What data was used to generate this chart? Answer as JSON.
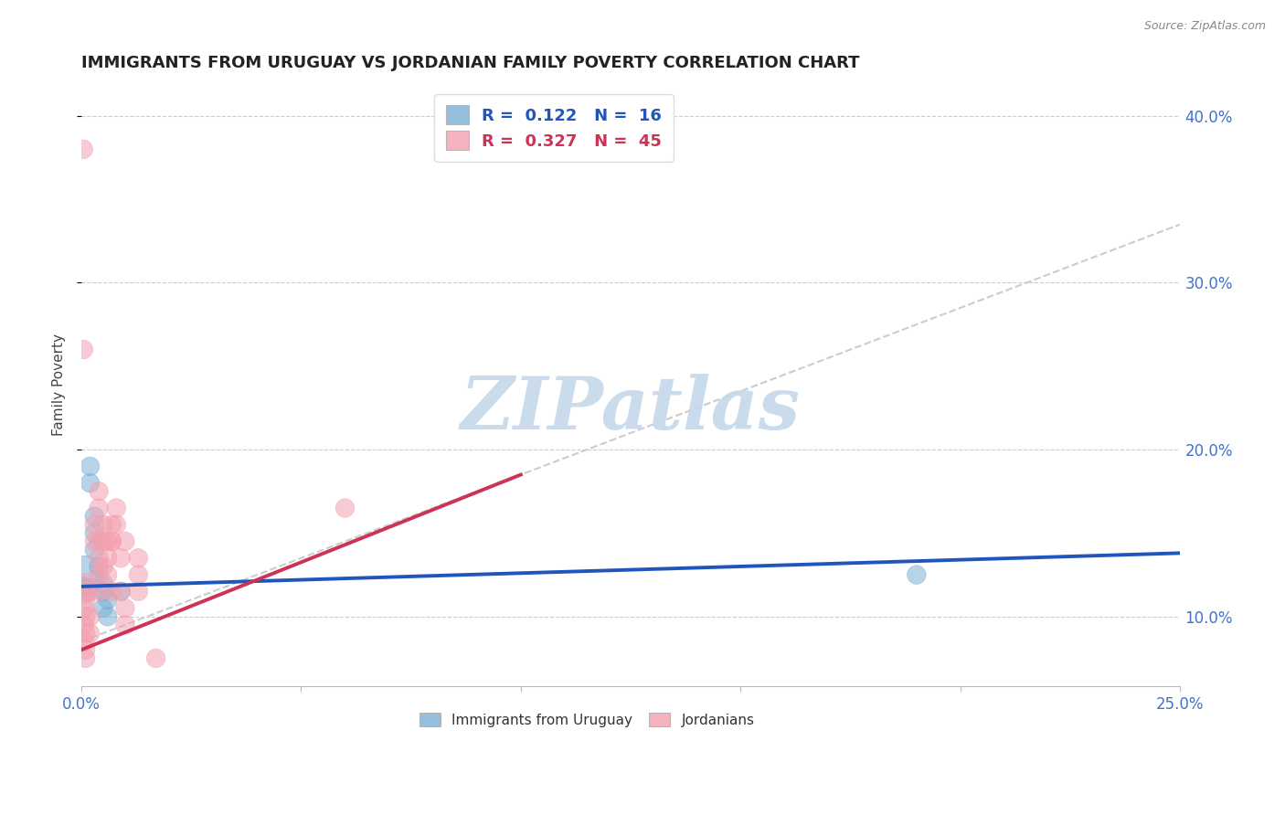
{
  "title": "IMMIGRANTS FROM URUGUAY VS JORDANIAN FAMILY POVERTY CORRELATION CHART",
  "source": "Source: ZipAtlas.com",
  "ylabel": "Family Poverty",
  "xlim": [
    0.0,
    0.25
  ],
  "ylim": [
    0.058,
    0.42
  ],
  "yticks": [
    0.1,
    0.2,
    0.3,
    0.4
  ],
  "grid_color": "#cccccc",
  "watermark": "ZIPatlas",
  "watermark_color": "#c5d8ea",
  "uruguay_color": "#7bafd4",
  "jordan_color": "#f4a0b0",
  "uruguay_line_color": "#2255bb",
  "jordan_line_color": "#cc3355",
  "gray_line_color": "#cccccc",
  "uruguay_points": [
    [
      0.0008,
      0.125
    ],
    [
      0.0008,
      0.115
    ],
    [
      0.002,
      0.19
    ],
    [
      0.002,
      0.18
    ],
    [
      0.003,
      0.16
    ],
    [
      0.003,
      0.15
    ],
    [
      0.003,
      0.14
    ],
    [
      0.004,
      0.13
    ],
    [
      0.005,
      0.115
    ],
    [
      0.005,
      0.105
    ],
    [
      0.005,
      0.12
    ],
    [
      0.006,
      0.11
    ],
    [
      0.006,
      0.1
    ],
    [
      0.009,
      0.115
    ],
    [
      0.19,
      0.125
    ],
    [
      0.0005,
      0.118
    ]
  ],
  "uruguay_sizes": [
    900,
    350,
    220,
    220,
    220,
    220,
    220,
    220,
    220,
    220,
    220,
    220,
    220,
    220,
    220,
    220
  ],
  "jordan_points": [
    [
      0.0005,
      0.38
    ],
    [
      0.0005,
      0.26
    ],
    [
      0.0008,
      0.115
    ],
    [
      0.0008,
      0.105
    ],
    [
      0.0008,
      0.095
    ],
    [
      0.0008,
      0.085
    ],
    [
      0.001,
      0.12
    ],
    [
      0.001,
      0.11
    ],
    [
      0.001,
      0.1
    ],
    [
      0.001,
      0.09
    ],
    [
      0.001,
      0.08
    ],
    [
      0.002,
      0.115
    ],
    [
      0.002,
      0.1
    ],
    [
      0.002,
      0.09
    ],
    [
      0.003,
      0.155
    ],
    [
      0.003,
      0.145
    ],
    [
      0.004,
      0.175
    ],
    [
      0.004,
      0.165
    ],
    [
      0.004,
      0.145
    ],
    [
      0.004,
      0.135
    ],
    [
      0.004,
      0.125
    ],
    [
      0.004,
      0.115
    ],
    [
      0.005,
      0.155
    ],
    [
      0.005,
      0.145
    ],
    [
      0.005,
      0.13
    ],
    [
      0.006,
      0.145
    ],
    [
      0.006,
      0.135
    ],
    [
      0.006,
      0.125
    ],
    [
      0.007,
      0.145
    ],
    [
      0.007,
      0.115
    ],
    [
      0.007,
      0.155
    ],
    [
      0.007,
      0.145
    ],
    [
      0.008,
      0.165
    ],
    [
      0.008,
      0.155
    ],
    [
      0.009,
      0.135
    ],
    [
      0.009,
      0.115
    ],
    [
      0.01,
      0.145
    ],
    [
      0.01,
      0.105
    ],
    [
      0.01,
      0.095
    ],
    [
      0.013,
      0.135
    ],
    [
      0.013,
      0.125
    ],
    [
      0.013,
      0.115
    ],
    [
      0.017,
      0.075
    ],
    [
      0.06,
      0.165
    ],
    [
      0.001,
      0.075
    ]
  ],
  "jordan_sizes": [
    220,
    220,
    220,
    220,
    220,
    220,
    220,
    220,
    220,
    220,
    220,
    220,
    220,
    220,
    220,
    220,
    220,
    220,
    220,
    220,
    220,
    220,
    220,
    220,
    220,
    220,
    220,
    220,
    220,
    220,
    220,
    220,
    220,
    220,
    220,
    220,
    220,
    220,
    220,
    220,
    220,
    220,
    220,
    220,
    220
  ],
  "blue_line": [
    0.0,
    0.118,
    0.25,
    0.138
  ],
  "pink_line": [
    0.0,
    0.08,
    0.1,
    0.185
  ],
  "gray_dashed_line": [
    0.0,
    0.085,
    0.25,
    0.335
  ]
}
